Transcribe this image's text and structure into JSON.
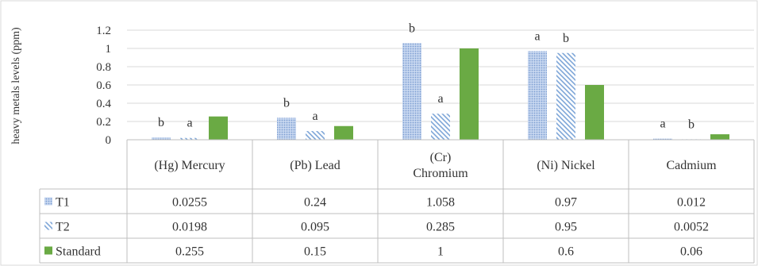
{
  "chart_data": {
    "type": "bar",
    "ylabel": "heavy metals levels (ppm)",
    "ylim": [
      0,
      1.2
    ],
    "yticks": [
      "0",
      "0.2",
      "0.4",
      "0.6",
      "0.8",
      "1",
      "1.2"
    ],
    "categories": [
      [
        "(Hg) Mercury"
      ],
      [
        "(Pb) Lead"
      ],
      [
        "(Cr)",
        "Chromium"
      ],
      [
        "(Ni) Nickel"
      ],
      [
        "Cadmium"
      ]
    ],
    "series": [
      {
        "name": "T1",
        "values": [
          0.0255,
          0.24,
          1.058,
          0.97,
          0.012
        ],
        "labels": [
          "0.0255",
          "0.24",
          "1.058",
          "0.97",
          "0.012"
        ],
        "color": "#9db6e0",
        "pattern": "dots"
      },
      {
        "name": "T2",
        "values": [
          0.0198,
          0.095,
          0.285,
          0.95,
          0.0052
        ],
        "labels": [
          "0.0198",
          "0.095",
          "0.285",
          "0.95",
          "0.0052"
        ],
        "color": "#7ea6d8",
        "pattern": "hatch"
      },
      {
        "name": "Standard",
        "values": [
          0.255,
          0.15,
          1,
          0.6,
          0.06
        ],
        "labels": [
          "0.255",
          "0.15",
          "1",
          "0.6",
          "0.06"
        ],
        "color": "#6aaa44",
        "pattern": "solid"
      }
    ],
    "annotations": [
      {
        "category": 0,
        "series": 0,
        "text": "b"
      },
      {
        "category": 0,
        "series": 1,
        "text": "a"
      },
      {
        "category": 1,
        "series": 0,
        "text": "b"
      },
      {
        "category": 1,
        "series": 1,
        "text": "a"
      },
      {
        "category": 2,
        "series": 0,
        "text": "b"
      },
      {
        "category": 2,
        "series": 1,
        "text": "a"
      },
      {
        "category": 3,
        "series": 0,
        "text": "a"
      },
      {
        "category": 3,
        "series": 1,
        "text": "b"
      },
      {
        "category": 4,
        "series": 0,
        "text": "a"
      },
      {
        "category": 4,
        "series": 1,
        "text": "b"
      }
    ],
    "grid": true,
    "data_table": true,
    "legend": "data-table-left"
  }
}
